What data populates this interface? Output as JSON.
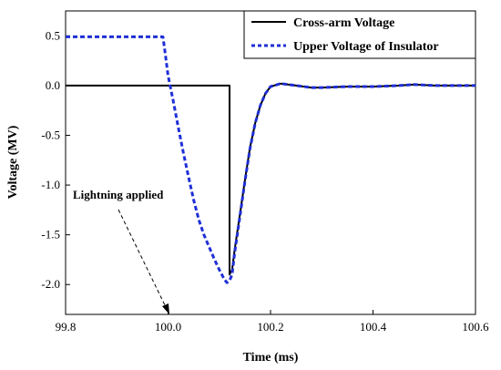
{
  "chart_data": {
    "type": "line",
    "xlabel": "Time (ms)",
    "ylabel": "Voltage (MV)",
    "xlim": [
      99.8,
      100.6
    ],
    "ylim": [
      -2.3,
      0.75
    ],
    "x_ticks": [
      "99.8",
      "100.0",
      "100.2",
      "100.4",
      "100.6"
    ],
    "x_tick_values": [
      99.8,
      100.0,
      100.2,
      100.4,
      100.6
    ],
    "y_ticks": [
      "0.5",
      "0.0",
      "-0.5",
      "-1.0",
      "-1.5",
      "-2.0"
    ],
    "y_tick_values": [
      0.5,
      0.0,
      -0.5,
      -1.0,
      -1.5,
      -2.0
    ],
    "legend_position": "top-right",
    "grid": false,
    "series": [
      {
        "name": "Cross-arm Voltage",
        "color": "#000000",
        "style": "solid",
        "x": [
          99.8,
          100.12,
          100.12,
          100.125,
          100.13,
          100.14,
          100.15,
          100.16,
          100.17,
          100.18,
          100.19,
          100.2,
          100.22,
          100.25,
          100.28,
          100.3,
          100.35,
          100.4,
          100.45,
          100.48,
          100.52,
          100.56,
          100.6
        ],
        "y": [
          0.0,
          0.0,
          -1.9,
          -1.85,
          -1.65,
          -1.3,
          -0.95,
          -0.62,
          -0.38,
          -0.2,
          -0.08,
          -0.01,
          0.02,
          0.0,
          -0.02,
          -0.02,
          -0.01,
          -0.01,
          0.0,
          0.01,
          0.0,
          0.0,
          0.0
        ]
      },
      {
        "name": "Upper Voltage of Insulator",
        "color": "#1f2fd6",
        "style": "dashed",
        "x": [
          99.8,
          99.99,
          99.995,
          100.0,
          100.01,
          100.02,
          100.03,
          100.04,
          100.05,
          100.06,
          100.07,
          100.08,
          100.09,
          100.1,
          100.11,
          100.115,
          100.12,
          100.125,
          100.13,
          100.14,
          100.15,
          100.16,
          100.17,
          100.18,
          100.19,
          100.2,
          100.22,
          100.25,
          100.28,
          100.3,
          100.35,
          100.4,
          100.45,
          100.48,
          100.52,
          100.56,
          100.6
        ],
        "y": [
          0.49,
          0.49,
          0.3,
          0.1,
          -0.15,
          -0.42,
          -0.68,
          -0.92,
          -1.15,
          -1.35,
          -1.5,
          -1.62,
          -1.74,
          -1.85,
          -1.95,
          -1.98,
          -1.96,
          -1.9,
          -1.68,
          -1.32,
          -0.96,
          -0.63,
          -0.38,
          -0.2,
          -0.08,
          -0.01,
          0.02,
          0.0,
          -0.02,
          -0.02,
          -0.01,
          -0.01,
          0.0,
          0.01,
          0.0,
          0.0,
          0.0
        ]
      }
    ],
    "annotations": [
      {
        "text": "Lightning applied",
        "arrow_to": [
          100.0,
          -2.3
        ]
      }
    ]
  }
}
